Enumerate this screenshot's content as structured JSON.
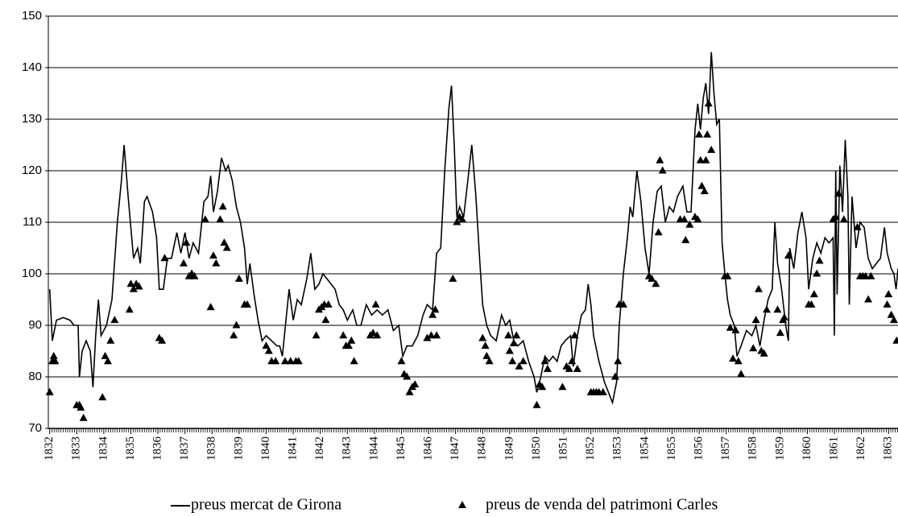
{
  "chart_data": {
    "type": "line",
    "xlim": [
      1831.95,
      1863.35
    ],
    "xticks": [
      1832,
      1833,
      1834,
      1835,
      1836,
      1837,
      1838,
      1839,
      1840,
      1841,
      1842,
      1843,
      1844,
      1845,
      1846,
      1847,
      1848,
      1849,
      1850,
      1851,
      1852,
      1853,
      1854,
      1855,
      1856,
      1857,
      1858,
      1859,
      1860,
      1861,
      1862,
      1863
    ],
    "ylim": [
      70,
      150
    ],
    "yticks": [
      70,
      80,
      90,
      100,
      110,
      120,
      130,
      140,
      150
    ],
    "grid": true,
    "legend": "bottom",
    "series": [
      {
        "name": "preus mercat de Girona",
        "color": "#000000",
        "style": "line",
        "x": [
          1832.0,
          1832.1,
          1832.25,
          1832.5,
          1832.75,
          1832.9,
          1833.05,
          1833.1,
          1833.2,
          1833.35,
          1833.5,
          1833.6,
          1833.7,
          1833.8,
          1833.9,
          1834.1,
          1834.3,
          1834.5,
          1834.65,
          1834.75,
          1834.9,
          1835.1,
          1835.25,
          1835.35,
          1835.5,
          1835.6,
          1835.8,
          1835.95,
          1836.05,
          1836.2,
          1836.35,
          1836.5,
          1836.7,
          1836.85,
          1837.0,
          1837.15,
          1837.3,
          1837.5,
          1837.7,
          1837.85,
          1837.95,
          1838.05,
          1838.2,
          1838.35,
          1838.5,
          1838.6,
          1838.75,
          1838.9,
          1839.05,
          1839.2,
          1839.3,
          1839.4,
          1839.55,
          1839.7,
          1839.85,
          1840.0,
          1840.2,
          1840.4,
          1840.5,
          1840.6,
          1840.75,
          1840.85,
          1841.0,
          1841.15,
          1841.3,
          1841.5,
          1841.65,
          1841.8,
          1841.95,
          1842.1,
          1842.25,
          1842.4,
          1842.55,
          1842.7,
          1842.85,
          1843.0,
          1843.2,
          1843.35,
          1843.5,
          1843.7,
          1843.9,
          1844.1,
          1844.3,
          1844.5,
          1844.7,
          1844.9,
          1845.05,
          1845.2,
          1845.4,
          1845.6,
          1845.8,
          1845.95,
          1846.15,
          1846.3,
          1846.45,
          1846.6,
          1846.75,
          1846.85,
          1846.95,
          1847.05,
          1847.15,
          1847.3,
          1847.45,
          1847.6,
          1847.75,
          1847.9,
          1848.0,
          1848.15,
          1848.3,
          1848.5,
          1848.7,
          1848.85,
          1849.0,
          1849.15,
          1849.3,
          1849.5,
          1849.7,
          1849.9,
          1850.0,
          1850.15,
          1850.3,
          1850.45,
          1850.6,
          1850.75,
          1850.9,
          1851.05,
          1851.25,
          1851.35,
          1851.5,
          1851.65,
          1851.8,
          1851.9,
          1852.0,
          1852.1,
          1852.3,
          1852.5,
          1852.65,
          1852.8,
          1852.95,
          1853.05,
          1853.2,
          1853.35,
          1853.45,
          1853.55,
          1853.7,
          1853.85,
          1854.0,
          1854.15,
          1854.3,
          1854.45,
          1854.6,
          1854.75,
          1854.9,
          1855.05,
          1855.2,
          1855.4,
          1855.55,
          1855.7,
          1855.85,
          1855.95,
          1856.05,
          1856.15,
          1856.25,
          1856.35,
          1856.45,
          1856.55,
          1856.65,
          1856.75,
          1856.85,
          1856.95,
          1857.05,
          1857.15,
          1857.3,
          1857.4,
          1857.55,
          1857.75,
          1857.95,
          1858.1,
          1858.25,
          1858.4,
          1858.55,
          1858.7,
          1858.8,
          1858.9,
          1859.05,
          1859.2,
          1859.3,
          1859.35,
          1859.5,
          1859.65,
          1859.8,
          1859.95,
          1860.05,
          1860.2,
          1860.35,
          1860.5,
          1860.65,
          1860.8,
          1860.95,
          1861.0,
          1861.05,
          1861.1,
          1861.2,
          1861.3,
          1861.4,
          1861.5,
          1861.55,
          1861.65,
          1861.8,
          1861.95,
          1862.1,
          1862.25,
          1862.4,
          1862.55,
          1862.7,
          1862.85,
          1862.95,
          1863.1,
          1863.2,
          1863.28,
          1863.35
        ],
        "values": [
          97,
          87,
          91,
          91.5,
          91,
          90,
          90,
          80,
          85,
          87,
          85,
          78,
          88,
          95,
          88,
          90,
          95,
          110,
          118,
          125,
          115,
          103,
          105,
          102,
          114,
          115,
          112,
          107,
          97,
          97,
          103,
          103,
          108,
          104,
          108,
          103,
          106,
          104,
          114,
          115,
          119,
          112,
          116,
          122.5,
          120,
          121,
          118,
          113,
          110,
          105,
          98,
          102,
          96,
          91,
          87,
          88,
          87,
          86,
          86,
          84,
          92,
          97,
          91,
          95,
          94,
          99,
          104,
          97,
          98,
          100,
          99,
          98,
          97,
          94,
          93,
          91,
          93,
          90,
          90,
          94,
          92,
          93,
          92,
          93,
          89,
          90,
          84,
          86,
          86,
          88,
          92,
          94,
          93,
          104,
          105,
          120,
          132,
          136.5,
          125,
          111,
          113,
          111,
          118,
          125,
          115,
          102,
          94,
          90,
          88,
          87,
          92,
          90,
          91,
          87,
          86,
          87,
          83,
          80,
          77,
          80,
          84,
          83,
          84,
          83,
          86,
          87,
          88,
          82,
          88,
          92,
          93,
          98,
          94,
          88,
          83,
          79,
          77,
          75,
          79,
          90,
          100,
          107,
          113,
          111,
          120,
          114,
          105,
          100,
          110,
          116,
          117,
          110,
          113,
          112,
          115,
          117,
          112,
          112,
          128,
          133,
          128,
          134,
          137,
          131,
          143,
          135,
          129,
          130,
          106,
          100,
          95,
          92,
          90,
          84,
          86,
          89,
          88,
          90,
          86,
          91,
          95,
          97,
          110,
          102,
          97,
          90,
          87,
          105,
          101,
          108,
          112,
          107,
          97,
          103,
          106,
          104,
          107,
          106,
          107,
          88,
          120,
          96,
          121,
          112,
          126,
          115,
          94,
          115,
          105,
          110,
          109,
          103,
          101,
          102,
          103,
          109,
          104,
          101,
          100,
          97,
          101
        ]
      },
      {
        "name": "preus de venda del patrimoni Carles",
        "color": "#000000",
        "style": "markers",
        "x": [
          1832.0,
          1832.1,
          1832.15,
          1832.2,
          1833.0,
          1833.1,
          1833.15,
          1833.25,
          1833.95,
          1834.05,
          1834.15,
          1834.25,
          1834.4,
          1834.95,
          1835.0,
          1835.1,
          1835.2,
          1835.3,
          1836.05,
          1836.15,
          1836.25,
          1836.95,
          1837.05,
          1837.15,
          1837.25,
          1837.35,
          1837.75,
          1837.95,
          1838.05,
          1838.15,
          1838.3,
          1838.4,
          1838.45,
          1838.55,
          1838.8,
          1838.9,
          1839.0,
          1839.2,
          1839.3,
          1840.0,
          1840.1,
          1840.2,
          1840.35,
          1840.7,
          1840.9,
          1841.1,
          1841.2,
          1841.85,
          1841.95,
          1842.05,
          1842.2,
          1842.15,
          1842.3,
          1842.85,
          1842.95,
          1843.05,
          1843.15,
          1843.25,
          1843.85,
          1843.95,
          1844.05,
          1844.1,
          1845.0,
          1845.1,
          1845.2,
          1845.3,
          1845.4,
          1845.5,
          1845.95,
          1846.1,
          1846.15,
          1846.25,
          1846.3,
          1846.9,
          1847.05,
          1847.15,
          1847.25,
          1848.0,
          1848.1,
          1848.15,
          1848.25,
          1848.95,
          1849.0,
          1849.1,
          1849.15,
          1849.25,
          1849.35,
          1849.5,
          1850.0,
          1850.1,
          1850.2,
          1850.3,
          1850.4,
          1850.95,
          1851.1,
          1851.2,
          1851.3,
          1851.4,
          1851.5,
          1852.0,
          1852.1,
          1852.2,
          1852.3,
          1852.45,
          1852.9,
          1853.0,
          1853.05,
          1853.2,
          1854.15,
          1854.25,
          1854.4,
          1854.5,
          1854.55,
          1854.65,
          1855.3,
          1855.45,
          1855.5,
          1855.65,
          1855.85,
          1855.95,
          1856.0,
          1856.05,
          1856.1,
          1856.2,
          1856.25,
          1856.3,
          1856.35,
          1856.45,
          1856.95,
          1857.05,
          1857.15,
          1857.25,
          1857.35,
          1857.45,
          1857.55,
          1858.0,
          1858.1,
          1858.2,
          1858.3,
          1858.4,
          1858.5,
          1858.9,
          1859.0,
          1859.1,
          1859.15,
          1859.3,
          1860.05,
          1860.15,
          1860.25,
          1860.35,
          1860.45,
          1860.95,
          1861.05,
          1861.15,
          1861.35,
          1861.85,
          1861.95,
          1862.05,
          1862.15,
          1862.25,
          1862.35,
          1862.95,
          1863.0,
          1863.1,
          1863.2,
          1863.3
        ],
        "values": [
          77,
          83,
          84,
          83,
          74.5,
          74.5,
          74,
          72,
          76,
          84,
          83,
          87,
          91,
          93,
          98,
          97,
          98,
          97.5,
          87.5,
          87,
          103,
          102,
          106,
          99.5,
          100,
          99.5,
          110.5,
          93.5,
          103.5,
          102,
          110.5,
          113,
          106,
          105,
          88,
          90,
          99,
          94,
          94,
          86,
          85,
          83,
          83,
          83,
          83,
          83,
          83,
          88,
          93,
          93.5,
          91,
          94,
          94,
          88,
          86,
          86,
          87,
          83,
          88,
          88.5,
          94,
          88,
          83,
          80.5,
          80,
          77,
          78,
          78.5,
          87.5,
          88,
          92,
          93,
          88,
          99,
          110,
          111,
          110.5,
          87.5,
          86,
          84,
          83,
          88,
          85,
          83,
          86.5,
          88,
          82,
          83,
          74.5,
          78.5,
          78,
          83,
          81.5,
          78,
          82,
          81.5,
          83,
          88,
          81.5,
          77,
          77,
          77,
          77,
          77,
          80,
          83,
          94,
          94,
          99.5,
          99,
          98,
          108,
          122,
          120,
          110.5,
          110.5,
          106.5,
          109.5,
          111,
          110.5,
          127,
          122,
          117,
          116,
          122,
          127,
          133,
          124,
          99.5,
          99.5,
          89.5,
          83.5,
          89,
          83,
          80.5,
          85.5,
          91,
          97,
          85,
          84.5,
          93,
          93,
          88.5,
          91,
          91.5,
          103.5,
          94,
          94,
          96,
          100,
          102.5,
          110.5,
          111,
          115.5,
          110.5,
          109,
          99.5,
          99.5,
          99.5,
          95,
          99.5,
          94,
          96,
          92,
          91,
          87
        ]
      }
    ]
  }
}
